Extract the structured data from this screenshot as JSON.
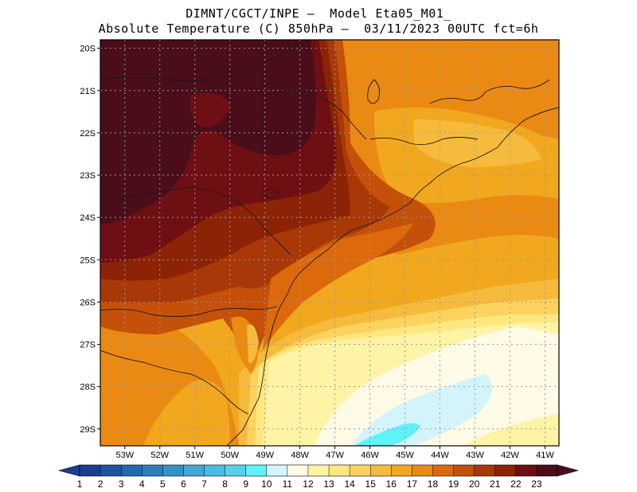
{
  "header": {
    "line1": "DIMNT/CGCT/INPE –  Model Eta05_M01_",
    "line2": "Absolute Temperature (C) 850hPa –  03/11/2023 00UTC fct=6h"
  },
  "map": {
    "lat_labels": [
      "20S",
      "21S",
      "22S",
      "23S",
      "24S",
      "25S",
      "26S",
      "27S",
      "28S",
      "29S"
    ],
    "lon_labels": [
      "53W",
      "52W",
      "51W",
      "50W",
      "49W",
      "48W",
      "47W",
      "46W",
      "45W",
      "44W",
      "43W",
      "42W",
      "41W"
    ],
    "lat_range": [
      -29.4,
      -19.8
    ],
    "lon_range": [
      -53.7,
      -40.6
    ]
  },
  "colorbar": {
    "labels": [
      "1",
      "2",
      "3",
      "4",
      "5",
      "6",
      "7",
      "8",
      "9",
      "10",
      "11",
      "12",
      "13",
      "14",
      "15",
      "16",
      "17",
      "18",
      "19",
      "20",
      "21",
      "22",
      "23"
    ],
    "colors": [
      "#1b3e92",
      "#1f54a0",
      "#2468ad",
      "#2b7fbc",
      "#3592c8",
      "#3fa8d4",
      "#4abce0",
      "#55d2eb",
      "#5ff2f7",
      "#d4f4fb",
      "#fffbe6",
      "#fff3a6",
      "#ffe780",
      "#fcd35e",
      "#f6bb3c",
      "#f1a81e",
      "#ea8a12",
      "#dc6a0c",
      "#c4500a",
      "#a83808",
      "#8c2206",
      "#6e0f14",
      "#4a0d1a"
    ]
  },
  "palette": {
    "t13": "#ffe780",
    "t14": "#fcd35e",
    "t15": "#f6bb3c",
    "t16": "#f1a81e",
    "t17": "#ea8a12",
    "t18": "#dc6a0c",
    "t19": "#c4500a",
    "t20": "#a83808",
    "t21": "#8c2206",
    "t22": "#6e0f14",
    "t23": "#4a0d1a",
    "t12": "#fff3a6",
    "t11": "#fffbe6",
    "t10": "#d4f4fb",
    "t9": "#5ff2f7"
  }
}
